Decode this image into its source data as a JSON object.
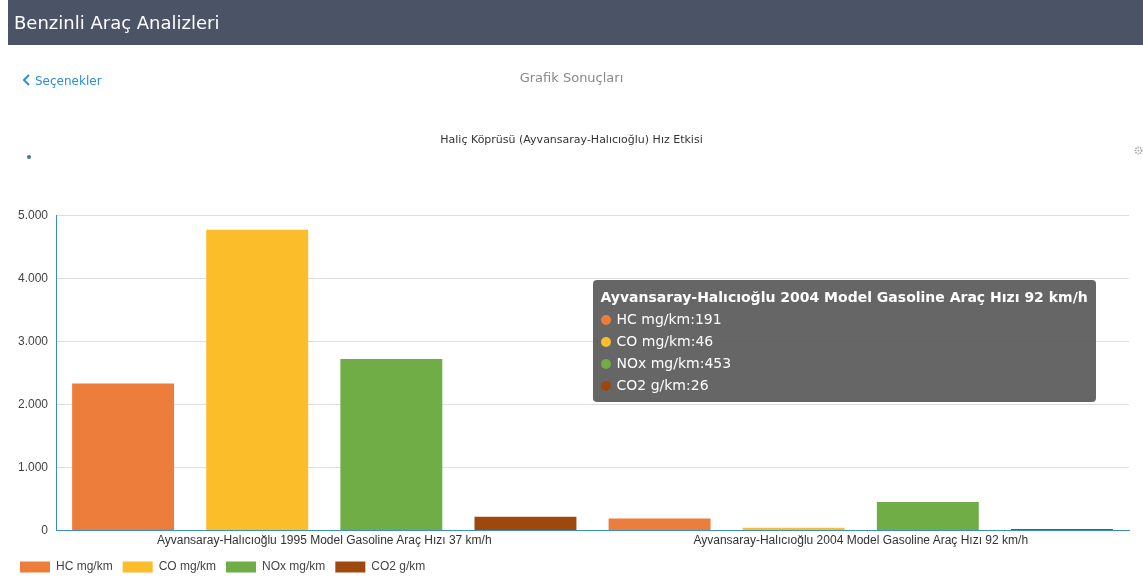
{
  "chart_data": {
    "type": "bar",
    "title": "Haliç Köprüsü (Ayvansaray-Halıcıoğlu) Hız Etkisi",
    "categories": [
      "Ayvansaray-Halıcıoğlu 1995 Model Gasoline Araç Hızı 37 km/h",
      "Ayvansaray-Halıcıoğlu 2004 Model Gasoline Araç Hızı 92 km/h"
    ],
    "series": [
      {
        "name": "HC mg/km",
        "color": "#ed7d3a",
        "values": [
          2330,
          191
        ]
      },
      {
        "name": "CO mg/km",
        "color": "#fbbd2a",
        "values": [
          4770,
          46
        ]
      },
      {
        "name": "NOx mg/km",
        "color": "#70ad47",
        "values": [
          2720,
          453
        ]
      },
      {
        "name": "CO2 g/km",
        "color": "#9e480e",
        "values": [
          220,
          26
        ]
      }
    ],
    "ylim": [
      0,
      5000
    ],
    "yticks": [
      0,
      {
        "value": 1000,
        "label": "1.000"
      },
      {
        "value": 2000,
        "label": "2.000"
      },
      {
        "value": 3000,
        "label": "3.000"
      },
      {
        "value": 4000,
        "label": "4.000"
      },
      {
        "value": 5000,
        "label": "5.000"
      }
    ],
    "grid": "y",
    "legend": "bottom left",
    "annotations": [
      "Benzinli Araç Analizleri",
      "Seçenekler",
      "Grafik Sonuçları",
      "Ayvansaray-Halıcıoğlu 2004 Model Gasoline Araç Hızı 92 km/h",
      "HC mg/km:191",
      "CO mg/km:46",
      "NOx mg/km:453",
      "CO2 g/km:26"
    ]
  }
}
